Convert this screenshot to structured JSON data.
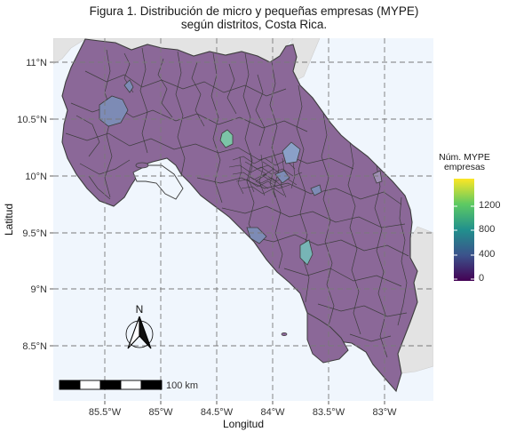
{
  "figure": {
    "title_line1": "Figura 1. Distribución de micro y pequeñas empresas (MYPE)",
    "title_line2": "según distritos, Costa Rica."
  },
  "colors": {
    "background_sea": "#f0f6fd",
    "land_neighbor": "#e3e3e3",
    "district_fill": "#8b6898",
    "district_border": "#3d3d3d",
    "grid_line": "#7a7a7a"
  },
  "map": {
    "x_axis_title": "Longitud",
    "y_axis_title": "Latitud",
    "x_ticks": [
      "85.5°W",
      "85°W",
      "84.5°W",
      "84°W",
      "83.5°W",
      "83°W"
    ],
    "y_ticks": [
      "11°N",
      "10.5°N",
      "10°N",
      "9.5°N",
      "9°N",
      "8.5°N"
    ],
    "north_arrow_label": "N",
    "scale_bar_label": "100 km"
  },
  "legend": {
    "title_line1": "Núm. MYPE",
    "title_line2": "empresas",
    "ticks": [
      "1200",
      "800",
      "400",
      "0"
    ],
    "colormap": "viridis"
  }
}
